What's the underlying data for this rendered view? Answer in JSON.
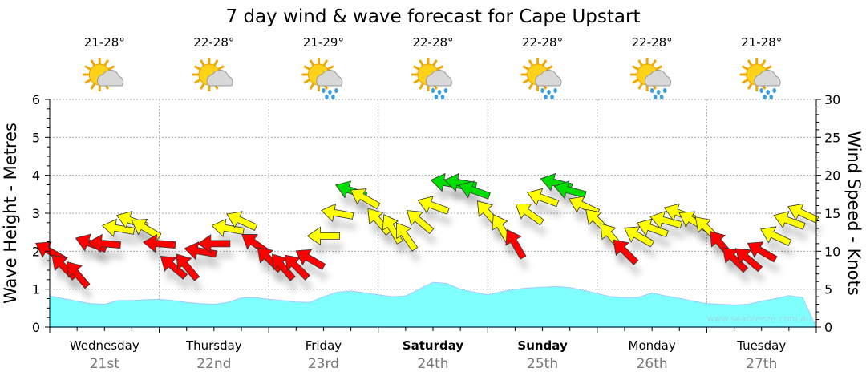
{
  "chart_data": {
    "type": "area+wind-arrows",
    "title": "7 day wind & wave forecast for Cape Upstart",
    "ylabel_left": "Wave Height - Metres",
    "ylabel_right": "Wind Speed - Knots",
    "ylim_left": [
      0,
      6
    ],
    "ylim_right": [
      0,
      30
    ],
    "yticks_left": [
      "0",
      "1",
      "2",
      "3",
      "4",
      "5",
      "6"
    ],
    "yticks_right": [
      "0",
      "5",
      "10",
      "15",
      "20",
      "25",
      "30"
    ],
    "grid": true,
    "watermark": "www.seabreeze.com.au",
    "days": [
      {
        "name": "Wednesday",
        "date": "21st",
        "bold": false,
        "temp": "21-28°",
        "icon": "sun-cloud-icon"
      },
      {
        "name": "Thursday",
        "date": "22nd",
        "bold": false,
        "temp": "22-28°",
        "icon": "sun-cloud-icon"
      },
      {
        "name": "Friday",
        "date": "23rd",
        "bold": false,
        "temp": "21-29°",
        "icon": "sun-cloud-rain-icon"
      },
      {
        "name": "Saturday",
        "date": "24th",
        "bold": true,
        "temp": "22-28°",
        "icon": "sun-cloud-rain-icon"
      },
      {
        "name": "Sunday",
        "date": "25th",
        "bold": true,
        "temp": "22-28°",
        "icon": "sun-cloud-rain-icon"
      },
      {
        "name": "Monday",
        "date": "26th",
        "bold": false,
        "temp": "22-28°",
        "icon": "sun-cloud-rain-icon"
      },
      {
        "name": "Tuesday",
        "date": "27th",
        "bold": false,
        "temp": "21-28°",
        "icon": "sun-cloud-rain-icon"
      }
    ],
    "interval_hours": 3,
    "wave_height_m": [
      0.82,
      0.75,
      0.68,
      0.62,
      0.6,
      0.7,
      0.7,
      0.72,
      0.73,
      0.7,
      0.65,
      0.62,
      0.6,
      0.65,
      0.77,
      0.78,
      0.73,
      0.7,
      0.66,
      0.65,
      0.8,
      0.92,
      0.95,
      0.9,
      0.85,
      0.8,
      0.82,
      1.0,
      1.18,
      1.15,
      1.0,
      0.92,
      0.85,
      0.93,
      1.0,
      1.03,
      1.05,
      1.07,
      1.04,
      0.97,
      0.88,
      0.8,
      0.78,
      0.78,
      0.9,
      0.82,
      0.76,
      0.68,
      0.62,
      0.6,
      0.58,
      0.6,
      0.68,
      0.75,
      0.83,
      0.78
    ],
    "wind_speed_kn": [
      10,
      8,
      7,
      11,
      11,
      13,
      14,
      13,
      11,
      8,
      8,
      10,
      11,
      13,
      14,
      11,
      9,
      8,
      8,
      9,
      12,
      15,
      18,
      17,
      14,
      13,
      12,
      14,
      16,
      19,
      19,
      18,
      15,
      13,
      11,
      15,
      17,
      19,
      18,
      16,
      14,
      12,
      10,
      12,
      13,
      14,
      15,
      14,
      13,
      11,
      9,
      9,
      10,
      12,
      14,
      15
    ],
    "wind_from_deg": [
      120,
      135,
      140,
      110,
      95,
      100,
      110,
      120,
      95,
      130,
      140,
      100,
      90,
      100,
      115,
      125,
      135,
      140,
      135,
      120,
      90,
      100,
      110,
      120,
      140,
      150,
      145,
      130,
      110,
      100,
      100,
      110,
      140,
      150,
      150,
      125,
      110,
      105,
      105,
      115,
      135,
      140,
      135,
      120,
      110,
      105,
      110,
      120,
      135,
      140,
      135,
      130,
      120,
      115,
      110,
      115
    ],
    "wind_colors": {
      "low": "#ff0000",
      "mid": "#ffff00",
      "high": "#00dd00"
    },
    "wind_thresholds_kn": [
      12,
      18
    ],
    "wave_color": "#80ffff"
  }
}
